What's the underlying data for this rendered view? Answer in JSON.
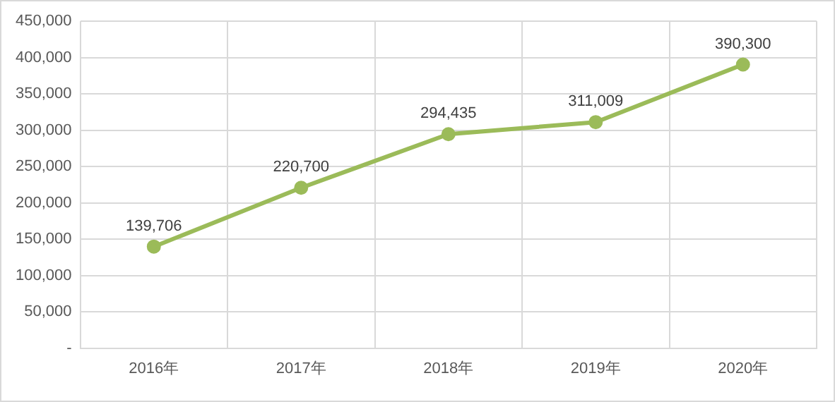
{
  "chart_data": {
    "type": "line",
    "categories": [
      "2016年",
      "2017年",
      "2018年",
      "2019年",
      "2020年"
    ],
    "series": [
      {
        "color": "#9bbb59",
        "values": [
          139706,
          220700,
          294435,
          311009,
          390300
        ],
        "value_labels": [
          "139,706",
          "220,700",
          "294,435",
          "311,009",
          "390,300"
        ]
      }
    ],
    "ylim": [
      0,
      450000
    ],
    "yticks": [
      {
        "value": 0,
        "label": "-"
      },
      {
        "value": 50000,
        "label": "50,000"
      },
      {
        "value": 100000,
        "label": "100,000"
      },
      {
        "value": 150000,
        "label": "150,000"
      },
      {
        "value": 200000,
        "label": "200,000"
      },
      {
        "value": 250000,
        "label": "250,000"
      },
      {
        "value": 300000,
        "label": "300,000"
      },
      {
        "value": 350000,
        "label": "350,000"
      },
      {
        "value": 400000,
        "label": "400,000"
      },
      {
        "value": 450000,
        "label": "450,000"
      }
    ],
    "grid": true,
    "legend": false,
    "marker": "circle",
    "line_style": "solid"
  }
}
